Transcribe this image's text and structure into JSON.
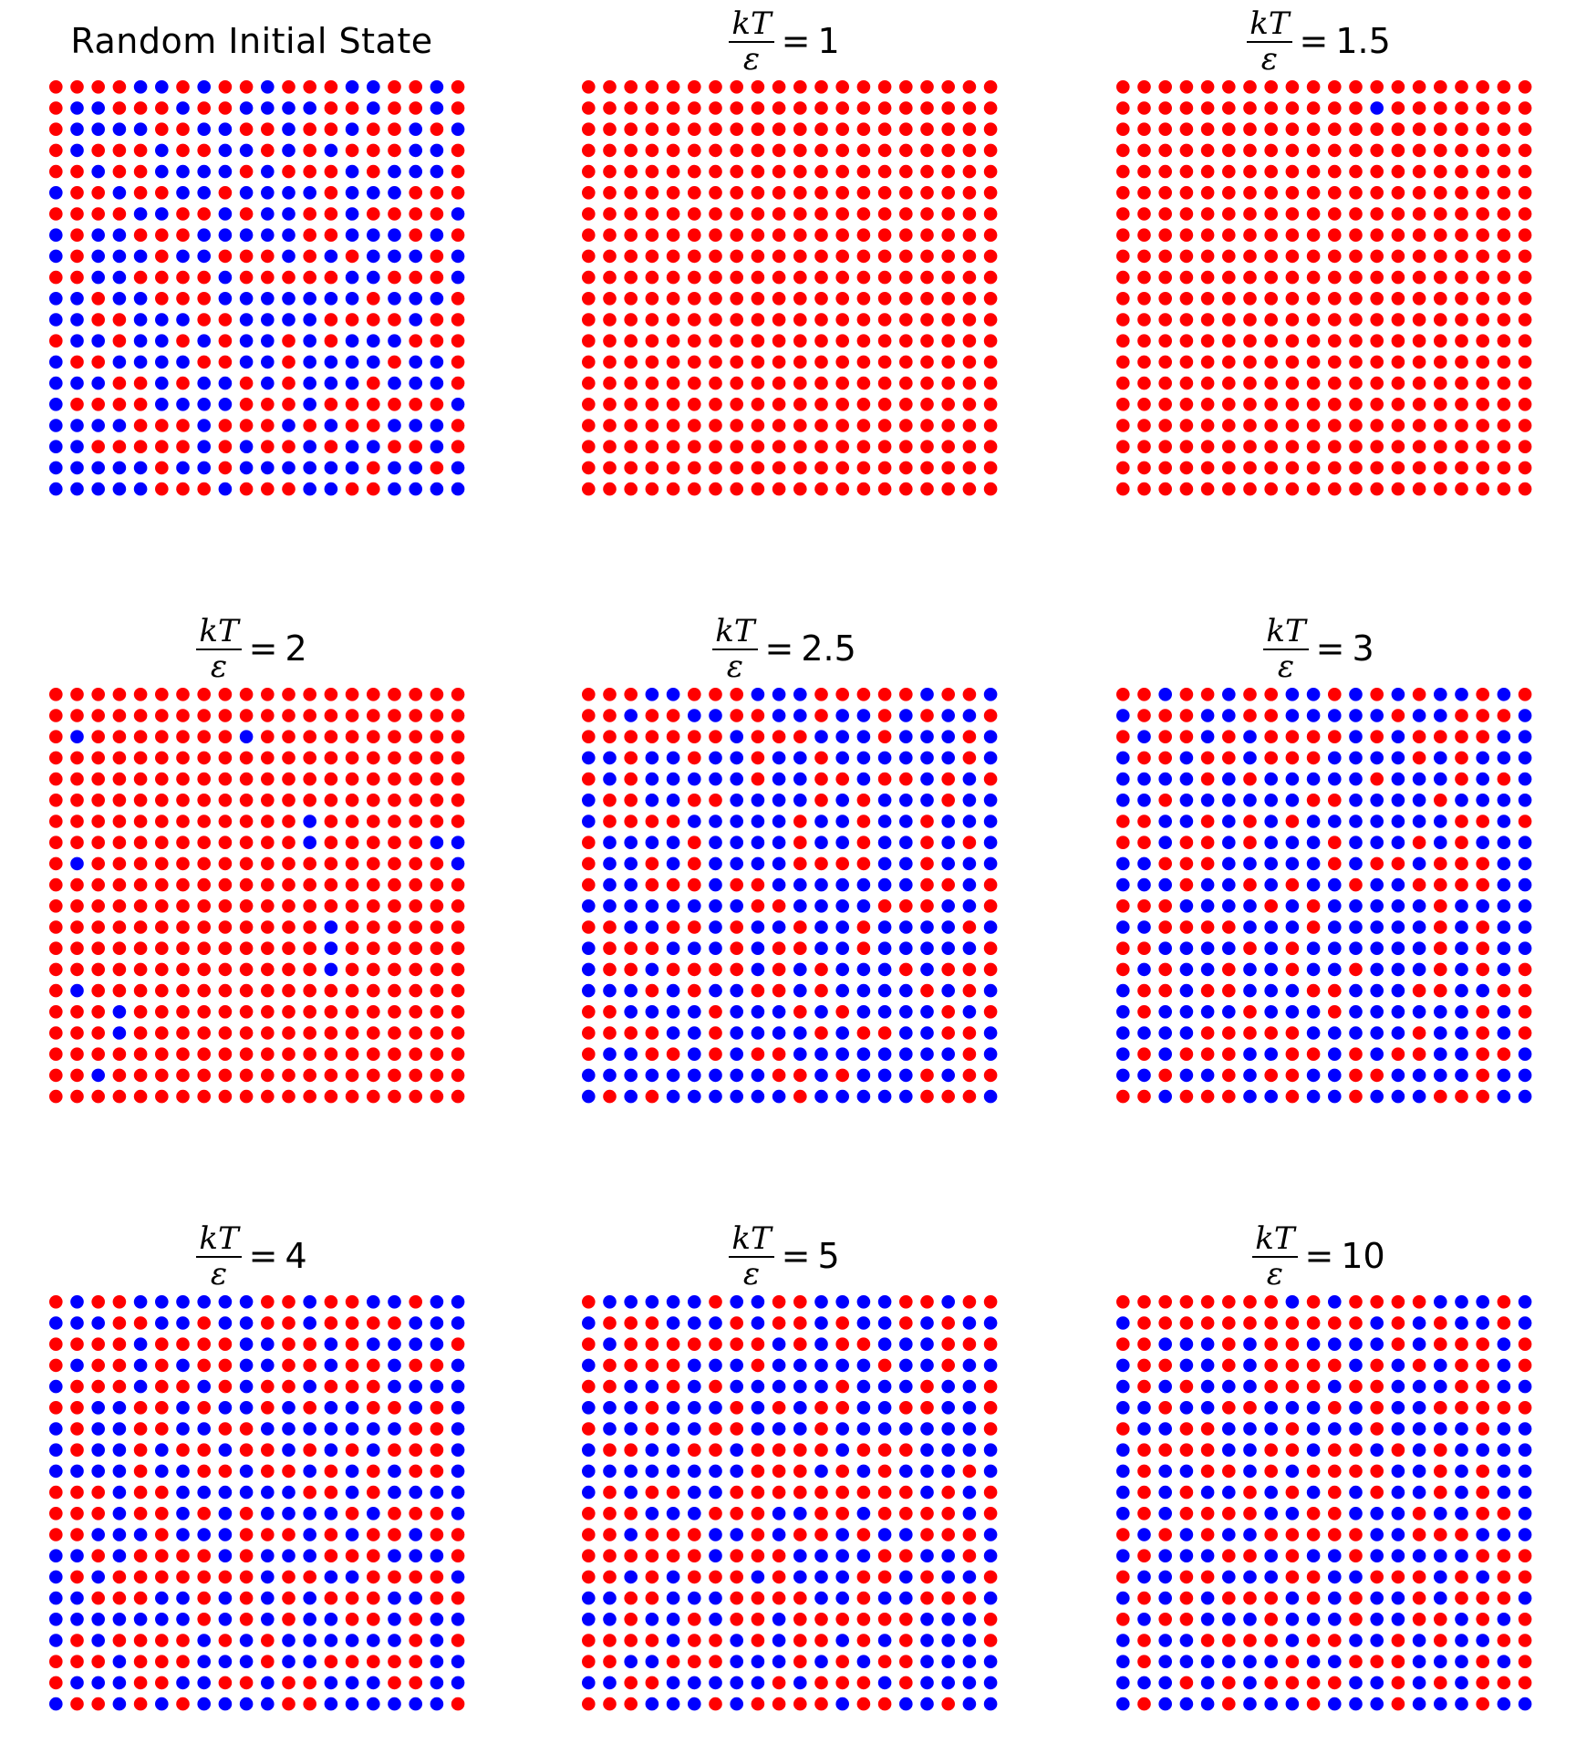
{
  "figure": {
    "colors": {
      "spin_up": "#ff0000",
      "spin_down": "#0000ff"
    },
    "title_fraction": {
      "numerator": "kT",
      "denominator": "ε",
      "equals": "="
    }
  },
  "chart_data": [
    {
      "type": "scatter",
      "title": "Random Initial State",
      "kT_over_eps": null,
      "grid": "20x20",
      "red_fraction": 0.5,
      "seed": 11,
      "blue_sites": []
    },
    {
      "type": "scatter",
      "title": "",
      "kT_over_eps": "1",
      "grid": "20x20",
      "red_fraction": 1.0,
      "seed": 21,
      "blue_sites": []
    },
    {
      "type": "scatter",
      "title": "",
      "kT_over_eps": "1.5",
      "grid": "20x20",
      "red_fraction": 1.0,
      "seed": 31,
      "blue_sites": [
        [
          1,
          12
        ]
      ]
    },
    {
      "type": "scatter",
      "title": "",
      "kT_over_eps": "2",
      "grid": "20x20",
      "red_fraction": 1.0,
      "seed": 41,
      "blue_sites": [
        [
          2,
          1
        ],
        [
          2,
          9
        ],
        [
          6,
          12
        ],
        [
          7,
          12
        ],
        [
          7,
          18
        ],
        [
          7,
          19
        ],
        [
          8,
          1
        ],
        [
          8,
          19
        ],
        [
          11,
          13
        ],
        [
          12,
          13
        ],
        [
          13,
          13
        ],
        [
          14,
          1
        ],
        [
          15,
          3
        ],
        [
          16,
          3
        ],
        [
          18,
          2
        ]
      ]
    },
    {
      "type": "scatter",
      "title": "",
      "kT_over_eps": "2.5",
      "grid": "20x20",
      "red_fraction": 0.4,
      "seed": 53,
      "blue_sites": []
    },
    {
      "type": "scatter",
      "title": "",
      "kT_over_eps": "3",
      "grid": "20x20",
      "red_fraction": 0.38,
      "seed": 67,
      "blue_sites": []
    },
    {
      "type": "scatter",
      "title": "",
      "kT_over_eps": "4",
      "grid": "20x20",
      "red_fraction": 0.5,
      "seed": 71,
      "blue_sites": []
    },
    {
      "type": "scatter",
      "title": "",
      "kT_over_eps": "5",
      "grid": "20x20",
      "red_fraction": 0.48,
      "seed": 83,
      "blue_sites": []
    },
    {
      "type": "scatter",
      "title": "",
      "kT_over_eps": "10",
      "grid": "20x20",
      "red_fraction": 0.52,
      "seed": 97,
      "blue_sites": []
    }
  ]
}
